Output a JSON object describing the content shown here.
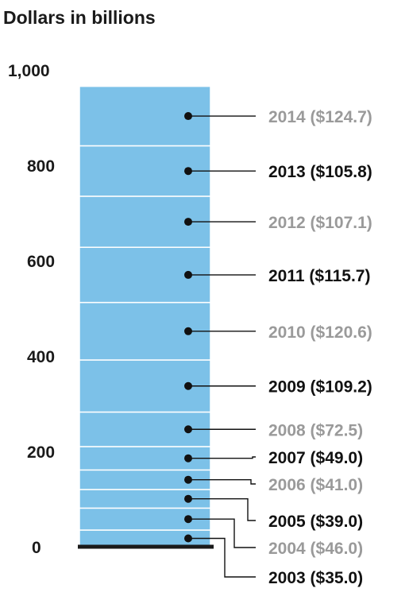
{
  "chart_data": {
    "type": "bar",
    "layout": "single stacked column",
    "ylabel": "Dollars in billions",
    "ylim": [
      0,
      1000
    ],
    "yticks": [
      "0",
      "200",
      "400",
      "600",
      "800",
      "1,000"
    ],
    "ytick_values": [
      0,
      200,
      400,
      600,
      800,
      1000
    ],
    "grid": false,
    "colors": {
      "bar": "#7cc1e8",
      "segment_divider": "#ffffff",
      "baseline": "#1a1a1a",
      "label_dark": "#111111",
      "label_light": "#9a9a9a"
    },
    "segments": [
      {
        "year": "2003",
        "value": 35.0,
        "label": "2003 ($35.0)",
        "tone": "dark"
      },
      {
        "year": "2004",
        "value": 46.0,
        "label": "2004 ($46.0)",
        "tone": "light"
      },
      {
        "year": "2005",
        "value": 39.0,
        "label": "2005 ($39.0)",
        "tone": "dark"
      },
      {
        "year": "2006",
        "value": 41.0,
        "label": "2006 ($41.0)",
        "tone": "light"
      },
      {
        "year": "2007",
        "value": 49.0,
        "label": "2007 ($49.0)",
        "tone": "dark"
      },
      {
        "year": "2008",
        "value": 72.5,
        "label": "2008 ($72.5)",
        "tone": "light"
      },
      {
        "year": "2009",
        "value": 109.2,
        "label": "2009 ($109.2)",
        "tone": "dark"
      },
      {
        "year": "2010",
        "value": 120.6,
        "label": "2010 ($120.6)",
        "tone": "light"
      },
      {
        "year": "2011",
        "value": 115.7,
        "label": "2011 ($115.7)",
        "tone": "dark"
      },
      {
        "year": "2012",
        "value": 107.1,
        "label": "2012 ($107.1)",
        "tone": "light"
      },
      {
        "year": "2013",
        "value": 105.8,
        "label": "2013 ($105.8)",
        "tone": "dark"
      },
      {
        "year": "2014",
        "value": 124.7,
        "label": "2014 ($124.7)",
        "tone": "light"
      }
    ]
  }
}
